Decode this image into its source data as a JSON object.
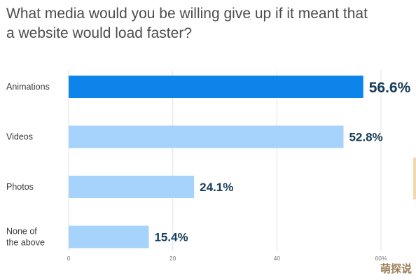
{
  "title_lines": [
    "What media would you be willing give up if it meant that",
    "a website would load faster?"
  ],
  "watermark": "萌探说",
  "colors": {
    "highlight_bar": "#0c84ea",
    "normal_bar": "#a6d3fb",
    "value_text": "#163c5a",
    "grid": "#e2e2e2"
  },
  "chart_data": {
    "type": "bar",
    "orientation": "horizontal",
    "title": "What media would you be willing give up if it meant that a website would load faster?",
    "categories": [
      "Animations",
      "Videos",
      "Photos",
      "None of the above"
    ],
    "category_lines": [
      [
        "Animations"
      ],
      [
        "Videos"
      ],
      [
        "Photos"
      ],
      [
        "None of",
        "the above"
      ]
    ],
    "values": [
      56.6,
      52.8,
      24.1,
      15.4
    ],
    "value_labels": [
      "56.6%",
      "52.8%",
      "24.1%",
      "15.4%"
    ],
    "highlight_index": 0,
    "xlim": [
      0,
      60
    ],
    "x_ticks": [
      0,
      20,
      40,
      60
    ],
    "x_tick_labels": [
      "0",
      "20",
      "40",
      "60%"
    ],
    "grid": true,
    "xlabel": "",
    "ylabel": ""
  }
}
